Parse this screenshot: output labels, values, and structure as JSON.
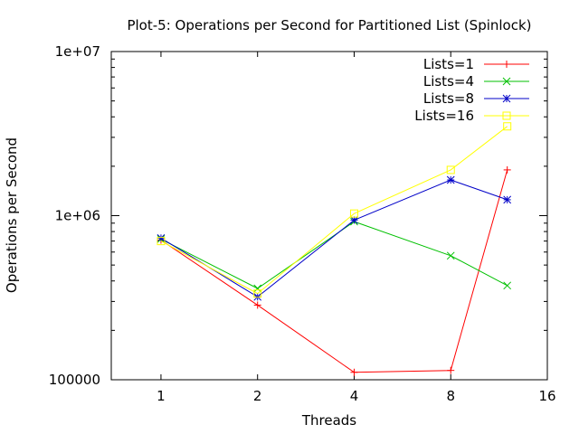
{
  "chart_data": {
    "type": "line",
    "title": "Plot-5: Operations per Second for Partitioned List (Spinlock)",
    "xlabel": "Threads",
    "ylabel": "Operations per Second",
    "x_scale": "log2",
    "y_scale": "log10",
    "xlim": [
      0.7,
      16
    ],
    "ylim": [
      100000,
      10000000
    ],
    "x_ticks": [
      1,
      2,
      4,
      8,
      16
    ],
    "x_tick_labels": [
      "1",
      "2",
      "4",
      "8",
      "16"
    ],
    "y_ticks": [
      100000,
      1000000,
      10000000
    ],
    "y_tick_labels": [
      "100000",
      "1e+06",
      "1e+07"
    ],
    "x": [
      1,
      2,
      4,
      8,
      12
    ],
    "legend_position": "top-right",
    "grid": false,
    "series": [
      {
        "name": "Lists=1",
        "color": "#ff0000",
        "marker": "plus",
        "values": [
          710000,
          285000,
          111000,
          114000,
          1900000
        ]
      },
      {
        "name": "Lists=4",
        "color": "#00c000",
        "marker": "cross",
        "values": [
          720000,
          360000,
          920000,
          570000,
          375000
        ]
      },
      {
        "name": "Lists=8",
        "color": "#0000c8",
        "marker": "star",
        "values": [
          730000,
          320000,
          940000,
          1650000,
          1250000
        ]
      },
      {
        "name": "Lists=16",
        "color": "#ffff00",
        "marker": "square",
        "values": [
          700000,
          335000,
          1030000,
          1900000,
          3500000
        ]
      }
    ]
  }
}
